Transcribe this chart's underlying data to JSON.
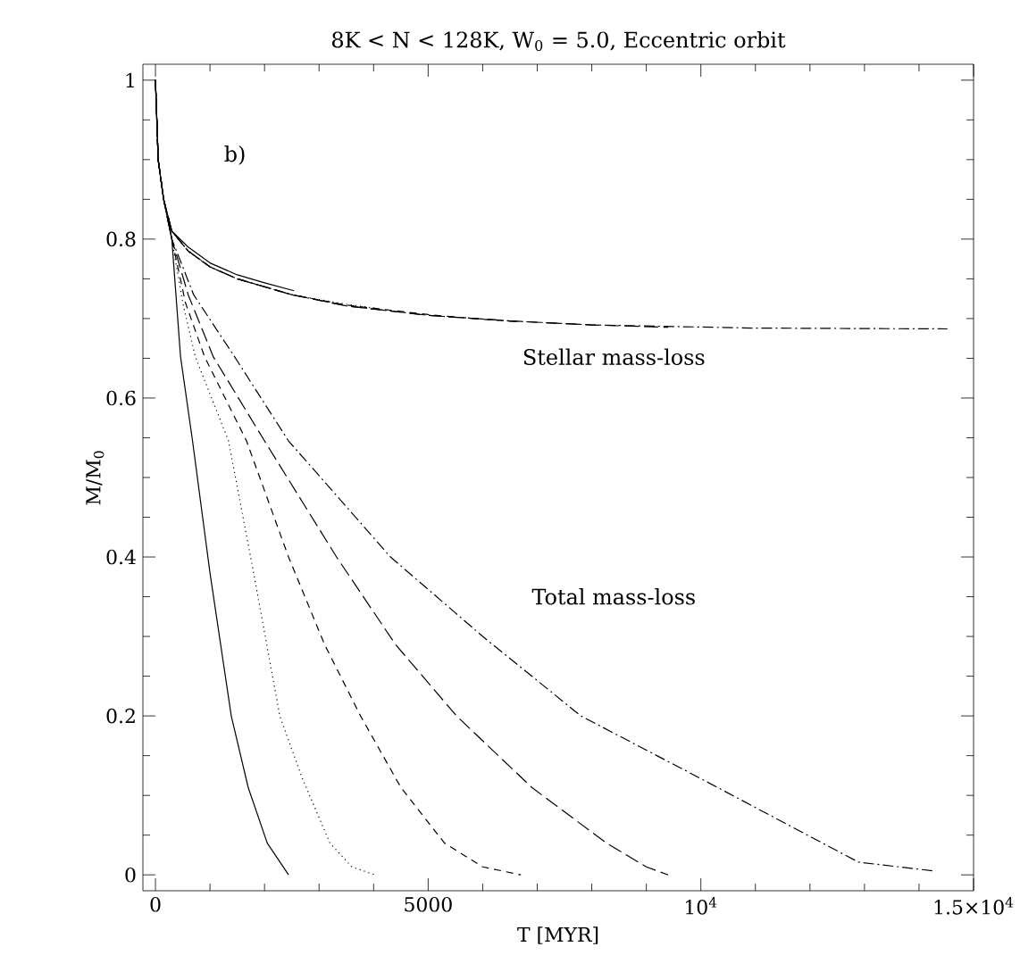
{
  "chart_data": {
    "type": "line",
    "title": "8K < N < 128K, W$_{0}$ = 5.0, Eccentric orbit",
    "xlabel": "T [MYR]",
    "ylabel": "M/M$_{0}$",
    "annotations": [
      "b)",
      "Stellar mass-loss",
      "Total mass-loss"
    ],
    "xlim": [
      -230,
      15000
    ],
    "ylim": [
      -0.02,
      1.02
    ],
    "xticks": [
      0,
      5000,
      {
        "value": 10000,
        "label": "10$^{4}$"
      },
      {
        "value": 15000,
        "label": "1.5×10$^{4}$"
      }
    ],
    "yticks": [
      0,
      0.2,
      0.4,
      0.6,
      0.8,
      1
    ],
    "grid": false,
    "series": [
      {
        "color": "#000000",
        "line_style": "solid",
        "x": [
          0,
          50,
          150,
          300,
          460,
          680,
          1000,
          1390,
          1700,
          2050,
          2440
        ],
        "values": [
          1.0,
          0.9,
          0.85,
          0.8,
          0.652,
          0.546,
          0.38,
          0.2,
          0.11,
          0.04,
          0.0
        ]
      },
      {
        "color": "#000000",
        "line_style": "dotted",
        "x": [
          0,
          50,
          150,
          300,
          500,
          730,
          1340,
          1800,
          2280,
          2700,
          3200,
          3600,
          4030
        ],
        "values": [
          1.0,
          0.9,
          0.85,
          0.8,
          0.72,
          0.652,
          0.546,
          0.38,
          0.2,
          0.12,
          0.04,
          0.01,
          0.0
        ]
      },
      {
        "color": "#000000",
        "line_style": "dashed",
        "x": [
          0,
          50,
          150,
          300,
          550,
          900,
          1670,
          2440,
          3100,
          3760,
          4500,
          5300,
          6000,
          6700
        ],
        "values": [
          1.0,
          0.9,
          0.85,
          0.8,
          0.72,
          0.652,
          0.546,
          0.4,
          0.29,
          0.2,
          0.11,
          0.04,
          0.01,
          0.0
        ]
      },
      {
        "color": "#000000",
        "line_style": "longdashed",
        "x": [
          0,
          50,
          150,
          300,
          600,
          1060,
          2000,
          3320,
          4400,
          5520,
          6900,
          8270,
          9000,
          9400
        ],
        "values": [
          1.0,
          0.9,
          0.85,
          0.8,
          0.73,
          0.652,
          0.546,
          0.4,
          0.29,
          0.2,
          0.11,
          0.04,
          0.01,
          0.0
        ]
      },
      {
        "color": "#000000",
        "line_style": "dashdot",
        "x": [
          0,
          50,
          150,
          300,
          700,
          1450,
          2440,
          4310,
          6000,
          7800,
          10030,
          12890,
          14260
        ],
        "values": [
          1.0,
          0.9,
          0.85,
          0.8,
          0.73,
          0.652,
          0.546,
          0.4,
          0.3,
          0.2,
          0.12,
          0.016,
          0.005
        ]
      },
      {
        "color": "#000000",
        "line_style": "solid",
        "x": [
          0,
          50,
          150,
          300,
          600,
          1000,
          1500,
          2000,
          2540
        ],
        "values": [
          1.0,
          0.9,
          0.85,
          0.81,
          0.79,
          0.77,
          0.755,
          0.745,
          0.735
        ]
      },
      {
        "color": "#000000",
        "line_style": "dotted",
        "x": [
          0,
          50,
          150,
          300,
          600,
          1000,
          1500,
          2500,
          3500,
          4030
        ],
        "values": [
          1.0,
          0.9,
          0.85,
          0.81,
          0.785,
          0.765,
          0.75,
          0.73,
          0.718,
          0.713
        ]
      },
      {
        "color": "#000000",
        "line_style": "dashed",
        "x": [
          0,
          50,
          150,
          300,
          600,
          1000,
          1500,
          2500,
          3500,
          5000,
          6000,
          6700
        ],
        "values": [
          1.0,
          0.9,
          0.85,
          0.81,
          0.785,
          0.765,
          0.75,
          0.73,
          0.717,
          0.705,
          0.699,
          0.696
        ]
      },
      {
        "color": "#000000",
        "line_style": "longdashed",
        "x": [
          0,
          50,
          150,
          300,
          600,
          1000,
          1500,
          2500,
          3500,
          5000,
          6500,
          8000,
          9400
        ],
        "values": [
          1.0,
          0.9,
          0.85,
          0.81,
          0.785,
          0.765,
          0.75,
          0.73,
          0.716,
          0.704,
          0.697,
          0.692,
          0.689
        ]
      },
      {
        "color": "#000000",
        "line_style": "dashdot",
        "x": [
          0,
          50,
          150,
          300,
          600,
          1000,
          1500,
          2500,
          3500,
          5000,
          6500,
          8000,
          11000,
          14520
        ],
        "values": [
          1.0,
          0.9,
          0.85,
          0.81,
          0.785,
          0.765,
          0.75,
          0.73,
          0.716,
          0.704,
          0.697,
          0.692,
          0.688,
          0.687
        ]
      }
    ]
  }
}
